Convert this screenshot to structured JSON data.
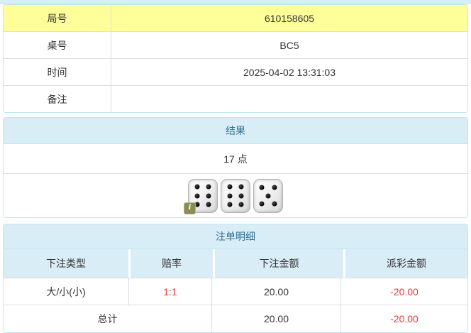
{
  "colors": {
    "highlight_yellow": "#ffff99",
    "info_heading_bg": "#d9edf7",
    "info_heading_border": "#bce8f1",
    "info_heading_text": "#31708f",
    "table_border": "#dddddd",
    "body_text": "#333333",
    "negative_red": "#e4393c"
  },
  "info_table": {
    "rows": [
      {
        "label": "局号",
        "value": "610158605"
      },
      {
        "label": "桌号",
        "value": "BC5"
      },
      {
        "label": "时间",
        "value": "2025-04-02 13:31:03"
      },
      {
        "label": "备注",
        "value": ""
      }
    ]
  },
  "result_panel": {
    "title": "结果",
    "points_text": "17 点",
    "dice": [
      6,
      6,
      5
    ],
    "info_badge": "i"
  },
  "bet_panel": {
    "title": "注单明细",
    "columns": [
      "下注类型",
      "赔率",
      "下注金额",
      "派彩金额"
    ],
    "rows": [
      {
        "bet_type": "大/小(小)",
        "odds": "1:1",
        "bet_amount": "20.00",
        "payout": "-20.00"
      }
    ],
    "total": {
      "label": "总计",
      "bet_amount": "20.00",
      "payout": "-20.00"
    }
  }
}
